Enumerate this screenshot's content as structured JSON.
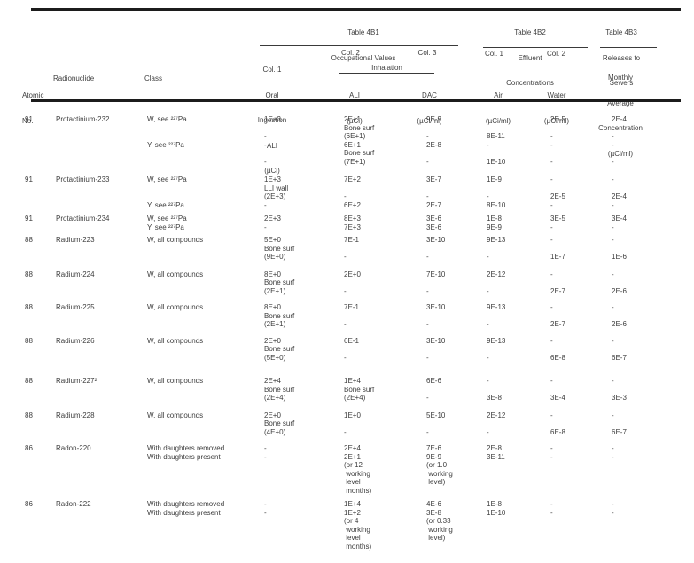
{
  "header": {
    "atomic": [
      "Atomic",
      "No."
    ],
    "radionuclide": "Radionuclide",
    "class_label": "Class",
    "t4b1": {
      "title": [
        "Table 4B1",
        "Occupational Values"
      ],
      "col1": [
        "Col. 1",
        "Oral",
        "Ingestion",
        "ALI",
        "(µCi)"
      ],
      "col2": "Col. 2",
      "col3": "Col. 3",
      "inhalation": "Inhalation",
      "ali": [
        "ALI",
        "(µCi)"
      ],
      "dac": [
        "DAC",
        "(µCi/ml)"
      ]
    },
    "t4b2": {
      "title": [
        "Table 4B2",
        "Effluent",
        "Concentrations"
      ],
      "col1": "Col. 1",
      "col2": "Col. 2",
      "air": [
        "Air",
        "(µCi/ml)"
      ],
      "water": [
        "Water",
        "(µCi/ml)"
      ]
    },
    "t4b3": {
      "title": [
        "Table 4B3",
        "Releases to",
        "Sewers"
      ],
      "monthly": [
        "Monthly",
        "Average",
        "Concentration",
        "(µCi/ml)"
      ]
    }
  },
  "table": {
    "columns": [
      "Atomic No.",
      "Radionuclide",
      "Class",
      "Oral Ingestion ALI (µCi)",
      "Inhalation ALI (µCi)",
      "Inhalation DAC (µCi/ml)",
      "Air (µCi/ml)",
      "Water (µCi/ml)",
      "Monthly Average Concentration (µCi/ml)"
    ],
    "groups": [
      {
        "lines": [
          [
            "91",
            "Protactinium-232",
            "W, see ²²⁷Pa",
            "1E+3",
            "2E+1",
            "9E-9",
            "-",
            "2E-5",
            "2E-4"
          ],
          [
            "",
            "",
            "",
            "",
            "Bone surf",
            "",
            "",
            "",
            ""
          ],
          [
            "",
            "",
            "",
            "-",
            "(6E+1)",
            "-",
            "8E-11",
            "-",
            "-"
          ],
          [
            "",
            "",
            "Y, see ²²⁷Pa",
            "-",
            "6E+1",
            "2E-8",
            "-",
            "-",
            "-"
          ],
          [
            "",
            "",
            "",
            "",
            "Bone surf",
            "",
            "",
            "",
            ""
          ],
          [
            "",
            "",
            "",
            "-",
            "(7E+1)",
            "-",
            "1E-10",
            "-",
            "-"
          ]
        ]
      },
      {
        "lines": [
          [
            "91",
            "Protactinium-233",
            "W, see ²²⁷Pa",
            "1E+3",
            "7E+2",
            "3E-7",
            "1E-9",
            "-",
            "-"
          ],
          [
            "",
            "",
            "",
            "LLI wall",
            "",
            "",
            "",
            "",
            ""
          ],
          [
            "",
            "",
            "",
            "(2E+3)",
            "-",
            "-",
            "-",
            "2E-5",
            "2E-4"
          ],
          [
            "",
            "",
            "Y, see ²²⁷Pa",
            "-",
            "6E+2",
            "2E-7",
            "8E-10",
            "-",
            "-"
          ]
        ]
      },
      {
        "lines": [
          [
            "91",
            "Protactinium-234",
            "W, see ²²⁷Pa",
            "2E+3",
            "8E+3",
            "3E-6",
            "1E-8",
            "3E-5",
            "3E-4"
          ],
          [
            "",
            "",
            "Y, see ²²⁷Pa",
            "-",
            "7E+3",
            "3E-6",
            "9E-9",
            "-",
            "-"
          ]
        ]
      },
      {
        "lines": [
          [
            "88",
            "Radium-223",
            "W, all compounds",
            "5E+0",
            "7E-1",
            "3E-10",
            "9E-13",
            "-",
            "-"
          ],
          [
            "",
            "",
            "",
            "Bone surf",
            "",
            "",
            "",
            "",
            ""
          ],
          [
            "",
            "",
            "",
            "(9E+0)",
            "-",
            "-",
            "-",
            "1E-7",
            "1E-6"
          ]
        ]
      },
      {
        "lines": [
          [
            "88",
            "Radium-224",
            "W, all compounds",
            "8E+0",
            "2E+0",
            "7E-10",
            "2E-12",
            "-",
            "-"
          ],
          [
            "",
            "",
            "",
            "Bone surf",
            "",
            "",
            "",
            "",
            ""
          ],
          [
            "",
            "",
            "",
            "(2E+1)",
            "-",
            "-",
            "-",
            "2E-7",
            "2E-6"
          ]
        ]
      },
      {
        "lines": [
          [
            "88",
            "Radium-225",
            "W, all compounds",
            "8E+0",
            "7E-1",
            "3E-10",
            "9E-13",
            "-",
            "-"
          ],
          [
            "",
            "",
            "",
            "Bone surf",
            "",
            "",
            "",
            "",
            ""
          ],
          [
            "",
            "",
            "",
            "(2E+1)",
            "-",
            "-",
            "-",
            "2E-7",
            "2E-6"
          ]
        ]
      },
      {
        "lines": [
          [
            "88",
            "Radium-226",
            "W, all compounds",
            "2E+0",
            "6E-1",
            "3E-10",
            "9E-13",
            "-",
            "-"
          ],
          [
            "",
            "",
            "",
            "Bone surf",
            "",
            "",
            "",
            "",
            ""
          ],
          [
            "",
            "",
            "",
            "(5E+0)",
            "-",
            "-",
            "-",
            "6E-8",
            "6E-7"
          ]
        ]
      },
      {
        "lines": [
          [
            "88",
            "Radium-227²",
            "W, all compounds",
            "2E+4",
            "1E+4",
            "6E-6",
            "-",
            "-",
            "-"
          ],
          [
            "",
            "",
            "",
            "Bone surf",
            "Bone surf",
            "",
            "",
            "",
            ""
          ],
          [
            "",
            "",
            "",
            "(2E+4)",
            "(2E+4)",
            "-",
            "3E-8",
            "3E-4",
            "3E-3"
          ]
        ]
      },
      {
        "lines": [
          [
            "88",
            "Radium-228",
            "W, all compounds",
            "2E+0",
            "1E+0",
            "5E-10",
            "2E-12",
            "-",
            "-"
          ],
          [
            "",
            "",
            "",
            "Bone surf",
            "",
            "",
            "",
            "",
            ""
          ],
          [
            "",
            "",
            "",
            "(4E+0)",
            "-",
            "-",
            "-",
            "6E-8",
            "6E-7"
          ]
        ]
      },
      {
        "lines": [
          [
            "86",
            "Radon-220",
            "With daughters removed",
            "-",
            "2E+4",
            "7E-6",
            "2E-8",
            "-",
            "-"
          ],
          [
            "",
            "",
            "With daughters present",
            "-",
            "2E+1",
            "9E-9",
            "3E-11",
            "-",
            "-"
          ],
          [
            "",
            "",
            "",
            "",
            "(or 12",
            "(or 1.0",
            "",
            "",
            ""
          ],
          [
            "",
            "",
            "",
            "",
            " working",
            " working",
            "",
            "",
            ""
          ],
          [
            "",
            "",
            "",
            "",
            " level",
            " level)",
            "",
            "",
            ""
          ],
          [
            "",
            "",
            "",
            "",
            " months)",
            "",
            "",
            "",
            ""
          ]
        ]
      },
      {
        "lines": [
          [
            "86",
            "Radon-222",
            "With daughters removed",
            "-",
            "1E+4",
            "4E-6",
            "1E-8",
            "-",
            "-"
          ],
          [
            "",
            "",
            "With daughters present",
            "-",
            "1E+2",
            "3E-8",
            "1E-10",
            "-",
            "-"
          ],
          [
            "",
            "",
            "",
            "",
            "(or 4",
            "(or 0.33",
            "",
            "",
            ""
          ],
          [
            "",
            "",
            "",
            "",
            " working",
            " working",
            "",
            "",
            ""
          ],
          [
            "",
            "",
            "",
            "",
            " level",
            " level)",
            "",
            "",
            ""
          ],
          [
            "",
            "",
            "",
            "",
            " months)",
            "",
            "",
            "",
            ""
          ]
        ]
      }
    ]
  }
}
